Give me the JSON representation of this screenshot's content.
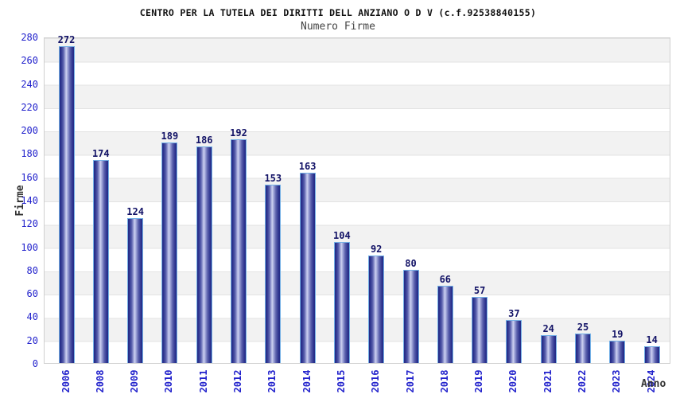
{
  "chart_data": {
    "type": "bar",
    "title": "CENTRO PER LA TUTELA DEI DIRITTI DELL ANZIANO O D V (c.f.92538840155)",
    "subtitle": "Numero Firme",
    "xlabel": "Anno",
    "ylabel": "Firme",
    "categories": [
      "2006",
      "2008",
      "2009",
      "2010",
      "2011",
      "2012",
      "2013",
      "2014",
      "2015",
      "2016",
      "2017",
      "2018",
      "2019",
      "2020",
      "2021",
      "2022",
      "2023",
      "2024"
    ],
    "values": [
      272,
      174,
      124,
      189,
      186,
      192,
      153,
      163,
      104,
      92,
      80,
      66,
      57,
      37,
      24,
      25,
      19,
      14
    ],
    "ylim": [
      0,
      280
    ],
    "ytick_step": 20,
    "grid": "horizontal-bands-alternating",
    "legend_position": "none",
    "colors": {
      "tick_label": "#2222cc",
      "value_label": "#121266",
      "bar_dark": "#232a85",
      "bar_highlight": "#cdd1f0",
      "bar_border": "#74b0e6",
      "band_gray": "#f2f2f2",
      "band_white": "#ffffff",
      "plot_border": "#cfcfcf",
      "title": "#111111",
      "subtitle": "#444444",
      "axis_label": "#333333"
    }
  }
}
